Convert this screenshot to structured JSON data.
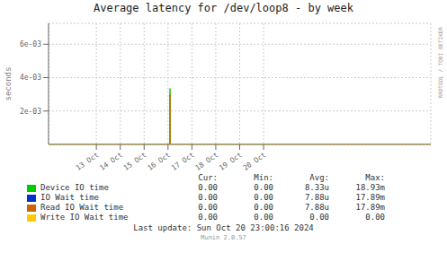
{
  "chart_data": {
    "type": "line",
    "title": "Average latency for /dev/loop8 - by week",
    "y_label": "seconds",
    "xlim": [
      1728518400,
      1729900800
    ],
    "xticks": [
      {
        "value": 1728691200,
        "label": "13 Oct"
      },
      {
        "value": 1728777600,
        "label": "14 Oct"
      },
      {
        "value": 1728864000,
        "label": "15 Oct"
      },
      {
        "value": 1728950400,
        "label": "16 Oct"
      },
      {
        "value": 1729036800,
        "label": "17 Oct"
      },
      {
        "value": 1729123200,
        "label": "18 Oct"
      },
      {
        "value": 1729209600,
        "label": "19 Oct"
      },
      {
        "value": 1729296000,
        "label": "20 Oct"
      }
    ],
    "ylim": [
      0,
      0.00725
    ],
    "yticks": [
      {
        "value": 0.002,
        "label": "2e-03"
      },
      {
        "value": 0.004,
        "label": "4e-03"
      },
      {
        "value": 0.006,
        "label": "6e-03"
      }
    ],
    "grid": true,
    "series": [
      {
        "name": "Device IO time",
        "color": "#00cc00",
        "x": [
          1728957600,
          1728957600
        ],
        "values": [
          0,
          0.00335
        ]
      },
      {
        "name": "IO Wait time",
        "color": "#0033cc",
        "x": [],
        "values": []
      },
      {
        "name": "Read IO Wait time",
        "color": "#cc6600",
        "x": [
          1728957600,
          1728957600
        ],
        "values": [
          0,
          0.003
        ]
      },
      {
        "name": "Write IO Wait time",
        "color": "#ffcc00",
        "x": [
          1728518400,
          1729900800
        ],
        "values": [
          2e-05,
          2e-05
        ]
      }
    ],
    "table": {
      "columns": [
        "Cur:",
        "Min:",
        "Avg:",
        "Max:"
      ],
      "rows": [
        [
          "0.00",
          "0.00",
          "8.33u",
          "18.93m"
        ],
        [
          "0.00",
          "0.00",
          "7.88u",
          "17.89m"
        ],
        [
          "0.00",
          "0.00",
          "7.88u",
          "17.89m"
        ],
        [
          "0.00",
          "0.00",
          "0.00",
          "0.00"
        ]
      ]
    },
    "annotations": [
      "Last update: Sun Oct 20 23:00:16 2024",
      "Munin 2.0.57",
      "RRDTOOL / TOBI OETIKER"
    ]
  }
}
